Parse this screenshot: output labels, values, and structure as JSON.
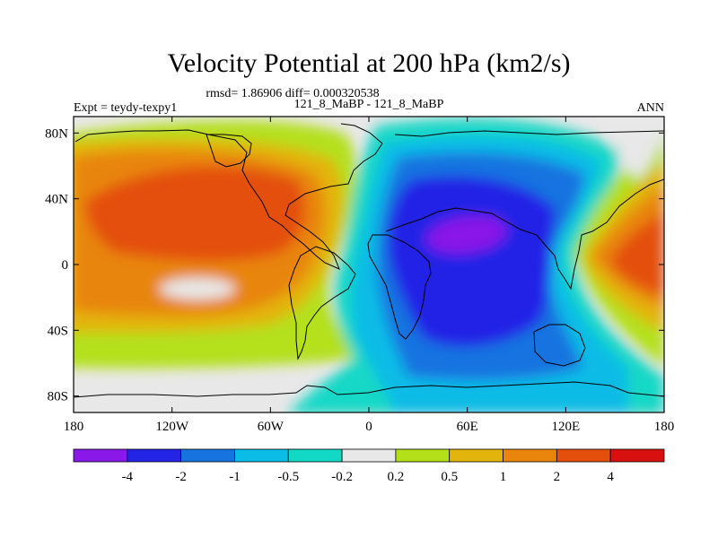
{
  "chart_data": {
    "type": "heatmap",
    "title": "Velocity Potential at 200 hPa (km2/s)",
    "stats_line": "rmsd= 1.86906 diff= 0.000320538",
    "left_label": "Expt = teydy-texpy1",
    "center_label": "121_8_MaBP - 121_8_MaBP",
    "right_label": "ANN",
    "x_range": [
      -180,
      180
    ],
    "y_range": [
      -90,
      90
    ],
    "x_ticks": [
      {
        "value": -180,
        "label": "180"
      },
      {
        "value": -120,
        "label": "120W"
      },
      {
        "value": -60,
        "label": "60W"
      },
      {
        "value": 0,
        "label": "0"
      },
      {
        "value": 60,
        "label": "60E"
      },
      {
        "value": 120,
        "label": "120E"
      },
      {
        "value": 180,
        "label": "180"
      }
    ],
    "y_ticks": [
      {
        "value": 80,
        "label": "80N"
      },
      {
        "value": 40,
        "label": "40N"
      },
      {
        "value": 0,
        "label": "0"
      },
      {
        "value": -40,
        "label": "40S"
      },
      {
        "value": -80,
        "label": "80S"
      }
    ],
    "colorbar": {
      "colors": [
        "#8a18e8",
        "#2424e6",
        "#1673e0",
        "#0bbce6",
        "#12d8c6",
        "#e8e8e8",
        "#b4e01a",
        "#e3b40c",
        "#e8850a",
        "#e44f0b",
        "#d81010"
      ],
      "labels": [
        "-4",
        "-2",
        "-1",
        "-0.5",
        "-0.2",
        "0.2",
        "0.5",
        "1",
        "2",
        "4"
      ]
    },
    "levels": [
      -4,
      -2,
      -1,
      -0.5,
      -0.2,
      0.2,
      0.5,
      1,
      2,
      4
    ],
    "field_centers": [
      {
        "name": "western-hemisphere-positive",
        "lon": -120,
        "lat": 20,
        "value": 3.5
      },
      {
        "name": "eastern-hemisphere-negative",
        "lon": 60,
        "lat": 10,
        "value": -3.5
      },
      {
        "name": "west-pacific-positive",
        "lon": 150,
        "lat": 0,
        "value": 3.0
      }
    ]
  }
}
